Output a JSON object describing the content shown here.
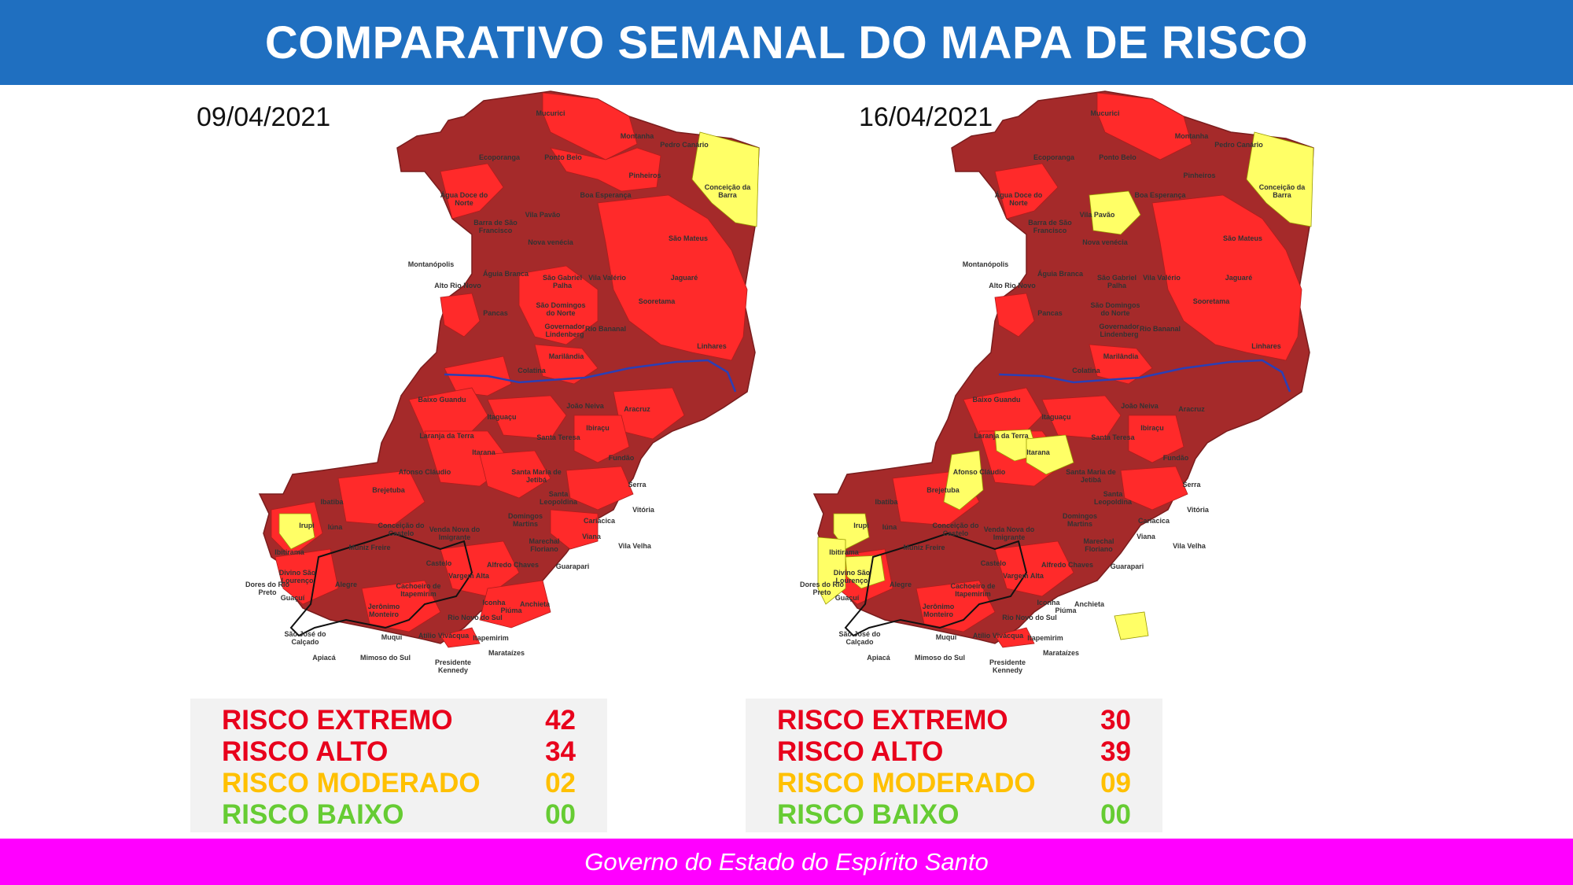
{
  "header": {
    "title": "COMPARATIVO SEMANAL DO MAPA DE RISCO"
  },
  "footer": {
    "text": "Governo do Estado do Espírito Santo"
  },
  "colors": {
    "header_bg": "#1f6fc0",
    "footer_bg": "#ff00ff",
    "risco_extremo": "#a52a2a",
    "risco_alto": "#ff2a2a",
    "risco_moderado": "#ffff66",
    "legend_red_text": "#e8001c",
    "legend_yellow_text": "#ffc000",
    "legend_green_text": "#66cc33",
    "river": "#2b3fb5"
  },
  "maps": [
    {
      "date": "09/04/2021",
      "legend": [
        {
          "label": "RISCO EXTREMO",
          "value": "42"
        },
        {
          "label": "RISCO ALTO",
          "value": "34"
        },
        {
          "label": "RISCO MODERADO",
          "value": "02"
        },
        {
          "label": "RISCO BAIXO",
          "value": "00"
        }
      ],
      "moderate": [
        "Conceição da Barra",
        "Ibitirama"
      ]
    },
    {
      "date": "16/04/2021",
      "legend": [
        {
          "label": "RISCO EXTREMO",
          "value": "30"
        },
        {
          "label": "RISCO ALTO",
          "value": "39"
        },
        {
          "label": "RISCO MODERADO",
          "value": "09"
        },
        {
          "label": "RISCO BAIXO",
          "value": "00"
        }
      ],
      "moderate": [
        "Conceição da Barra",
        "Vila Pavão",
        "Laranja da Terra",
        "Itarana",
        "Brejetuba",
        "Ibitirama",
        "Divino São Lourenço",
        "Dores do Rio Preto",
        "Iconha"
      ]
    }
  ],
  "municipalities": [
    "Mucurici",
    "Montanha",
    "Pedro Canário",
    "Ecoporanga",
    "Ponto Belo",
    "Pinheiros",
    "Conceição da Barra",
    "Boa Esperança",
    "Água Doce do Norte",
    "Barra de São Francisco",
    "Vila Pavão",
    "Nova venécia",
    "São Mateus",
    "Montanópolis",
    "Águia Branca",
    "São Gabriel Palha",
    "Vila Valério",
    "Jaguaré",
    "Alto Rio Novo",
    "São Domingos do Norte",
    "Sooretama",
    "Pancas",
    "Governador Lindenberg",
    "Rio Bananal",
    "Marilândia",
    "Linhares",
    "Colatina",
    "Baixo Guandu",
    "João Neiva",
    "Aracruz",
    "Itaguaçu",
    "Ibiraçu",
    "Laranja da Terra",
    "Santa Teresa",
    "Itarana",
    "Fundão",
    "Afonso Cláudio",
    "Santa Maria de Jetibá",
    "Brejetuba",
    "Santa Leopoldina",
    "Serra",
    "Vitória",
    "Ibatiba",
    "Irupi",
    "Iúna",
    "Conceição do Castelo",
    "Venda Nova do Imigrante",
    "Domingos Martins",
    "Cariacica",
    "Viana",
    "Vila Velha",
    "Ibitirama",
    "Muniz Freire",
    "Marechal Floriano",
    "Divino São Lourenço",
    "Castelo",
    "Alfredo Chaves",
    "Dores do Rio Preto",
    "Alegre",
    "Cachoeiro de Itapemirim",
    "Vargem Alta",
    "Guaçuí",
    "Jerônimo Monteiro",
    "Iconha",
    "Anchieta",
    "Rio Novo do Sul",
    "Piúma",
    "Guarapari",
    "São José do Calçado",
    "Muqui",
    "Atílio Vivácqua",
    "Itapemirim",
    "Apiacá",
    "Mimoso do Sul",
    "Presidente Kennedy",
    "Marataízes"
  ]
}
